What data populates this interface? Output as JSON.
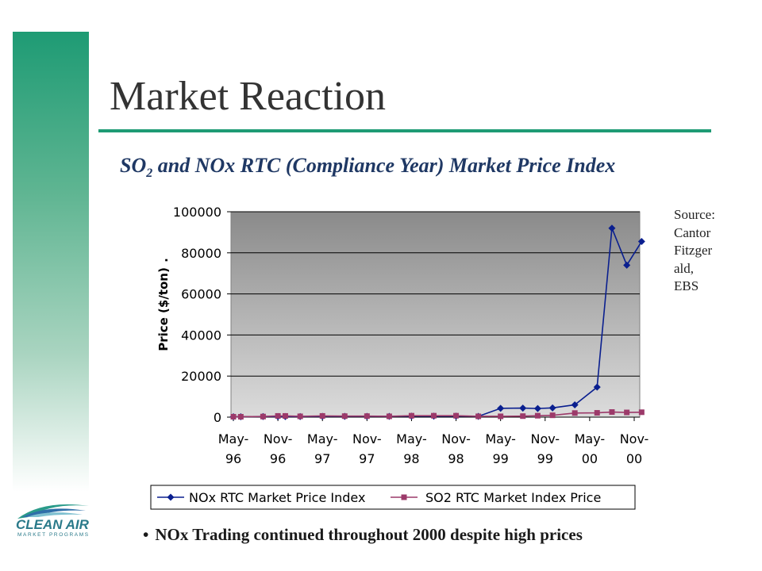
{
  "slide": {
    "title": "Market Reaction",
    "subtitle_part1": "SO",
    "subtitle_sub": "2",
    "subtitle_part2": " and NOx RTC (Compliance Year) Market Price Index",
    "source_lines": [
      "Source:",
      "Cantor",
      "Fitzger",
      "ald,",
      "EBS"
    ],
    "bullet_symbol": "•",
    "bullet_text": "NOx Trading continued throughout 2000 despite high  prices",
    "logo_text": "CLEAN AIR",
    "logo_subtext": "MARKET PROGRAMS"
  },
  "chart_data": {
    "type": "line",
    "title": "",
    "xlabel": "",
    "ylabel": "Price ($/ton)",
    "ylabel_suffix": ".",
    "ylim": [
      0,
      100000
    ],
    "yticks": [
      "0",
      "20000",
      "40000",
      "60000",
      "80000",
      "100000"
    ],
    "yticks_values": [
      0,
      20000,
      40000,
      60000,
      80000,
      100000
    ],
    "xlim": [
      0,
      54
    ],
    "xtick_labels": [
      [
        "May-",
        "96"
      ],
      [
        "Nov-",
        "96"
      ],
      [
        "May-",
        "97"
      ],
      [
        "Nov-",
        "97"
      ],
      [
        "May-",
        "98"
      ],
      [
        "Nov-",
        "98"
      ],
      [
        "May-",
        "99"
      ],
      [
        "Nov-",
        "99"
      ],
      [
        "May-",
        "00"
      ],
      [
        "Nov-",
        "00"
      ]
    ],
    "xtick_positions": [
      0,
      6,
      12,
      18,
      24,
      30,
      36,
      42,
      48,
      54
    ],
    "grid": true,
    "legend": "bottom",
    "series": [
      {
        "name": "NOx RTC Market Price Index",
        "color": "#0a1f8f",
        "marker": "diamond",
        "points": [
          [
            0,
            200
          ],
          [
            1,
            200
          ],
          [
            4,
            300
          ],
          [
            6,
            300
          ],
          [
            7,
            300
          ],
          [
            9,
            300
          ],
          [
            12,
            400
          ],
          [
            15,
            400
          ],
          [
            18,
            400
          ],
          [
            21,
            400
          ],
          [
            24,
            500
          ],
          [
            27,
            500
          ],
          [
            30,
            500
          ],
          [
            33,
            400
          ],
          [
            36,
            4300
          ],
          [
            39,
            4400
          ],
          [
            41,
            4200
          ],
          [
            43,
            4500
          ],
          [
            46,
            6000
          ],
          [
            49,
            14600
          ],
          [
            51,
            92000
          ],
          [
            53,
            74000
          ],
          [
            55,
            85500
          ]
        ]
      },
      {
        "name": "SO2 RTC Market Index Price",
        "color": "#9c3a6a",
        "marker": "square",
        "points": [
          [
            0,
            200
          ],
          [
            1,
            200
          ],
          [
            4,
            300
          ],
          [
            6,
            600
          ],
          [
            7,
            600
          ],
          [
            9,
            400
          ],
          [
            12,
            600
          ],
          [
            15,
            500
          ],
          [
            18,
            500
          ],
          [
            21,
            400
          ],
          [
            24,
            700
          ],
          [
            27,
            700
          ],
          [
            30,
            700
          ],
          [
            33,
            400
          ],
          [
            36,
            400
          ],
          [
            39,
            500
          ],
          [
            41,
            700
          ],
          [
            43,
            900
          ],
          [
            46,
            2000
          ],
          [
            49,
            2100
          ],
          [
            51,
            2500
          ],
          [
            53,
            2300
          ],
          [
            55,
            2400
          ]
        ]
      }
    ]
  }
}
